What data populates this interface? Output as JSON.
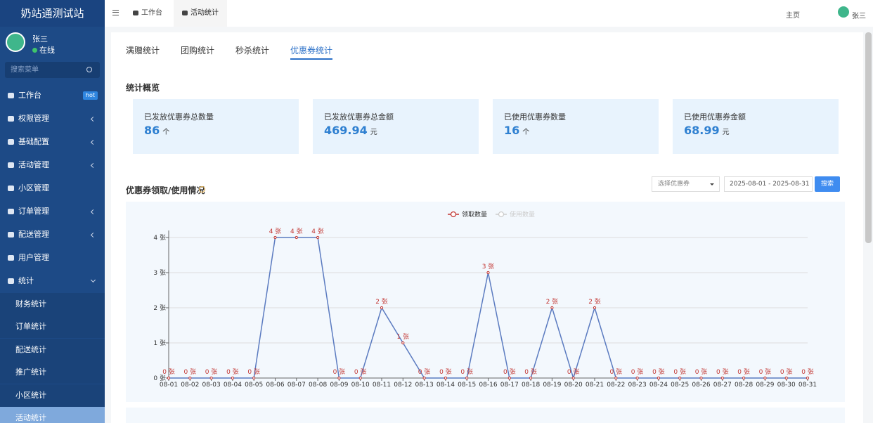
{
  "sidebar": {
    "brand": "奶站通测试站",
    "user": {
      "name": "张三",
      "status": "在线"
    },
    "search_placeholder": "搜索菜单",
    "menu": [
      {
        "label": "工作台",
        "badge": "hot"
      },
      {
        "label": "权限管理",
        "expandable": true
      },
      {
        "label": "基础配置",
        "expandable": true
      },
      {
        "label": "活动管理",
        "expandable": true
      },
      {
        "label": "小区管理"
      },
      {
        "label": "订单管理",
        "expandable": true
      },
      {
        "label": "配送管理",
        "expandable": true
      },
      {
        "label": "用户管理"
      },
      {
        "label": "统计",
        "open": true,
        "children": [
          "财务统计",
          "订单统计",
          "配送统计",
          "推广统计",
          "小区统计",
          "活动统计"
        ],
        "active_child": 5
      }
    ]
  },
  "topbar": {
    "tabs": [
      "工作台",
      "活动统计"
    ],
    "active_tab": 1,
    "home": "主页",
    "user": "张三"
  },
  "page_tabs": {
    "items": [
      "满赠统计",
      "团购统计",
      "秒杀统计",
      "优惠券统计"
    ],
    "active": 3
  },
  "overview": {
    "title": "统计概览",
    "cards": [
      {
        "label": "已发放优惠券总数量",
        "value": 86,
        "unit": "个"
      },
      {
        "label": "已发放优惠券总金额",
        "value": 469.94,
        "unit": "元"
      },
      {
        "label": "已使用优惠券数量",
        "value": 16,
        "unit": "个"
      },
      {
        "label": "已使用优惠券金额",
        "value": 68.99,
        "unit": "元"
      }
    ]
  },
  "usage": {
    "title": "优惠券领取/使用情况",
    "select_placeholder": "选择优惠券",
    "date_range": "2025-08-01 - 2025-08-31",
    "search_button": "搜索"
  },
  "chart_data": {
    "type": "line",
    "categories": [
      "08-01",
      "08-02",
      "08-03",
      "08-04",
      "08-05",
      "08-06",
      "08-07",
      "08-08",
      "08-09",
      "08-10",
      "08-11",
      "08-12",
      "08-13",
      "08-14",
      "08-15",
      "08-16",
      "08-17",
      "08-18",
      "08-19",
      "08-20",
      "08-21",
      "08-22",
      "08-23",
      "08-24",
      "08-25",
      "08-26",
      "08-27",
      "08-28",
      "08-29",
      "08-30",
      "08-31"
    ],
    "series": [
      {
        "name": "领取数量",
        "color": "#c23531",
        "line_color": "#5b7bc0",
        "visible": true,
        "values": [
          0,
          0,
          0,
          0,
          0,
          4,
          4,
          4,
          0,
          0,
          2,
          1,
          0,
          0,
          0,
          3,
          0,
          0,
          2,
          0,
          2,
          0,
          0,
          0,
          0,
          0,
          0,
          0,
          0,
          0,
          0
        ],
        "value_labels": [
          "0 张",
          "0 张",
          "0 张",
          "0 张",
          "0 张",
          "4 张",
          "4 张",
          "4 张",
          "0 张",
          "0 张",
          "2 张",
          "1 张",
          "0 张",
          "0 张",
          "0 张",
          "3 张",
          "0 张",
          "0 张",
          "2 张",
          "0 张",
          "2 张",
          "0 张",
          "0 张",
          "0 张",
          "0 张",
          "0 张",
          "0 张",
          "0 张",
          "0 张",
          "0 张",
          "0 张"
        ]
      },
      {
        "name": "使用数量",
        "color": "#cccccc",
        "visible": false
      }
    ],
    "ylim": [
      0,
      4
    ],
    "yticks": [
      {
        "value": 0,
        "label": "0 张"
      },
      {
        "value": 1,
        "label": "1 张"
      },
      {
        "value": 2,
        "label": "2 张"
      },
      {
        "value": 3,
        "label": "3 张"
      },
      {
        "value": 4,
        "label": "4 张"
      }
    ],
    "grid": true
  }
}
